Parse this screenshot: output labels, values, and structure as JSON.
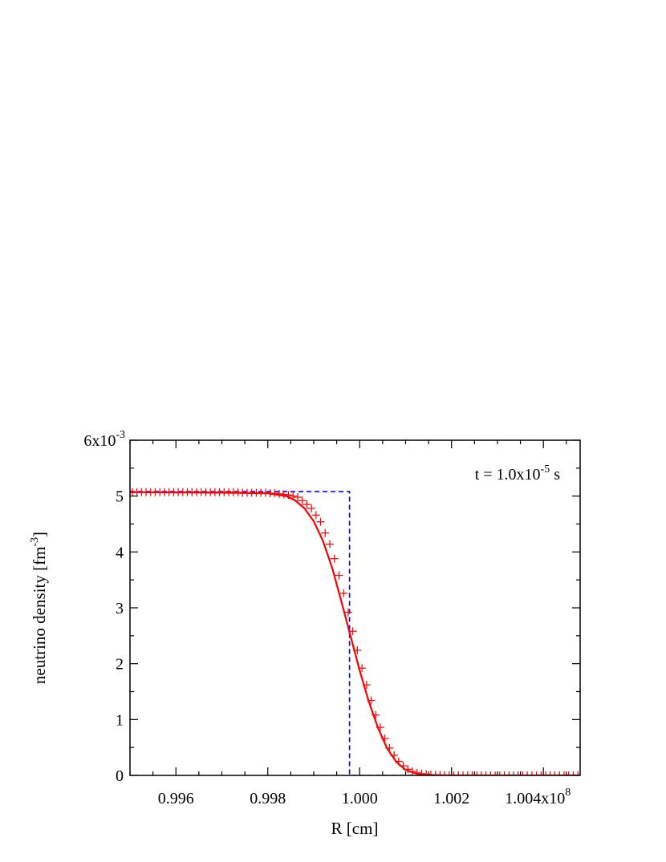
{
  "chart_data": {
    "type": "line",
    "xlabel": "R [cm]",
    "ylabel_main": "neutrino density [fm",
    "ylabel_exp": "-3",
    "ylabel_close": "]",
    "xlim": [
      0.995,
      1.0048
    ],
    "ylim": [
      0,
      6
    ],
    "x_scale": "1e8",
    "y_scale": "1e-3",
    "x_ticks": [
      {
        "value": 0.996,
        "label": "0.996"
      },
      {
        "value": 0.998,
        "label": "0.998"
      },
      {
        "value": 1.0,
        "label": "1.000"
      },
      {
        "value": 1.002,
        "label": "1.002"
      },
      {
        "value": 1.004,
        "label": "1.004x10",
        "exp": "8"
      }
    ],
    "y_ticks": [
      {
        "value": 0,
        "label": "0"
      },
      {
        "value": 1,
        "label": "1"
      },
      {
        "value": 2,
        "label": "2"
      },
      {
        "value": 3,
        "label": "3"
      },
      {
        "value": 4,
        "label": "4"
      },
      {
        "value": 5,
        "label": "5"
      },
      {
        "value": 6,
        "label": "6x10",
        "exp": "-3"
      }
    ],
    "annotation": {
      "prefix": "t = 1.0x10",
      "exp": "-5",
      "suffix": " s"
    },
    "series": [
      {
        "style": "dashed",
        "color": "#0000ff",
        "x": [
          0.995,
          0.99978,
          0.99978,
          1.0048
        ],
        "y": [
          5.08,
          5.08,
          0.0,
          0.0
        ]
      },
      {
        "style": "solid",
        "color": "#ff0000",
        "x": [
          0.995,
          0.9972,
          0.998,
          0.9984,
          0.9986,
          0.9988,
          0.999,
          0.9992,
          0.9994,
          0.9996,
          0.9998,
          1.0,
          1.0002,
          1.0004,
          1.0006,
          1.0008,
          1.001,
          1.0012,
          1.0014,
          1.0016,
          1.002,
          1.003,
          1.0048
        ],
        "y": [
          5.07,
          5.06,
          5.05,
          5.0,
          4.92,
          4.78,
          4.55,
          4.2,
          3.72,
          3.12,
          2.5,
          1.88,
          1.32,
          0.85,
          0.48,
          0.24,
          0.1,
          0.04,
          0.015,
          0.005,
          0.0,
          0.0,
          0.0
        ]
      },
      {
        "style": "markers",
        "marker": "plus",
        "color": "#ff0000",
        "x": [
          0.99505,
          0.99515,
          0.99525,
          0.99535,
          0.99545,
          0.99555,
          0.99565,
          0.99575,
          0.99585,
          0.99595,
          0.99605,
          0.99615,
          0.99625,
          0.99635,
          0.99645,
          0.99655,
          0.99665,
          0.99675,
          0.99685,
          0.99695,
          0.99705,
          0.99715,
          0.99725,
          0.99735,
          0.99745,
          0.99755,
          0.99765,
          0.99775,
          0.99785,
          0.99795,
          0.99805,
          0.99815,
          0.99825,
          0.99835,
          0.99845,
          0.99855,
          0.99865,
          0.99875,
          0.99885,
          0.99895,
          0.99905,
          0.99915,
          0.99925,
          0.99935,
          0.99945,
          0.99955,
          0.99965,
          0.99975,
          0.99985,
          0.99995,
          1.00005,
          1.00015,
          1.00025,
          1.00035,
          1.00045,
          1.00055,
          1.00065,
          1.00075,
          1.00085,
          1.00095,
          1.00105,
          1.00115,
          1.00125,
          1.00135,
          1.00145,
          1.00155,
          1.00165,
          1.00175,
          1.00185,
          1.00195,
          1.00205,
          1.00215,
          1.00225,
          1.00235,
          1.00245,
          1.00255,
          1.00265,
          1.00275,
          1.00285,
          1.00295,
          1.00305,
          1.00315,
          1.00325,
          1.00335,
          1.00345,
          1.00355,
          1.00365,
          1.00375,
          1.00385,
          1.00395,
          1.00405,
          1.00415,
          1.00425,
          1.00435,
          1.00445,
          1.00455,
          1.00465,
          1.00475
        ],
        "y": [
          5.07,
          5.07,
          5.07,
          5.07,
          5.07,
          5.07,
          5.07,
          5.07,
          5.07,
          5.07,
          5.07,
          5.07,
          5.07,
          5.07,
          5.07,
          5.07,
          5.07,
          5.07,
          5.07,
          5.07,
          5.07,
          5.07,
          5.07,
          5.07,
          5.06,
          5.06,
          5.06,
          5.06,
          5.06,
          5.06,
          5.05,
          5.05,
          5.04,
          5.03,
          5.02,
          5.0,
          4.98,
          4.92,
          4.85,
          4.78,
          4.66,
          4.54,
          4.34,
          4.14,
          3.88,
          3.58,
          3.26,
          2.92,
          2.58,
          2.24,
          1.92,
          1.62,
          1.34,
          1.08,
          0.86,
          0.66,
          0.49,
          0.36,
          0.25,
          0.17,
          0.11,
          0.07,
          0.045,
          0.03,
          0.02,
          0.012,
          0.008,
          0.005,
          0.003,
          0.002,
          0.0,
          0.0,
          0.0,
          0.0,
          0.0,
          0.0,
          0.0,
          0.0,
          0.0,
          0.0,
          0.0,
          0.0,
          0.0,
          0.0,
          0.0,
          0.0,
          0.0,
          0.0,
          0.0,
          0.0,
          0.0,
          0.0,
          0.0,
          0.0,
          0.0,
          0.0,
          0.0,
          0.0
        ]
      }
    ]
  }
}
